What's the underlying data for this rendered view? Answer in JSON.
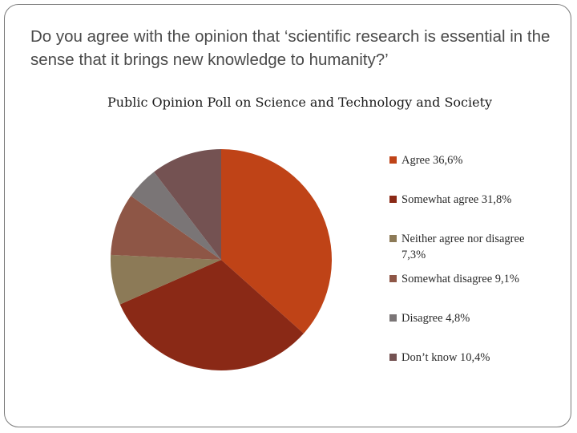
{
  "slide": {
    "question": "Do you agree with the opinion that ‘scientific research is essential in the sense that it brings new knowledge to humanity?’"
  },
  "chart_data": {
    "type": "pie",
    "title": "Public Opinion Poll on Science and Technology and Society",
    "legend_position": "right",
    "start_angle": "12 o'clock, clockwise",
    "slices": [
      {
        "label": "Agree 36,6%",
        "value": 36.6,
        "color": "#bf4317"
      },
      {
        "label": "Somewhat agree 31,8%",
        "value": 31.8,
        "color": "#8a2916"
      },
      {
        "label": "Neither agree nor disagree 7,3%",
        "value": 7.3,
        "color": "#8c7a57"
      },
      {
        "label": "Somewhat disagree 9,1%",
        "value": 9.1,
        "color": "#8e5646"
      },
      {
        "label": "Disagree 4,8%",
        "value": 4.8,
        "color": "#7a7576"
      },
      {
        "label": "Don’t know 10,4%",
        "value": 10.4,
        "color": "#745252"
      }
    ]
  }
}
